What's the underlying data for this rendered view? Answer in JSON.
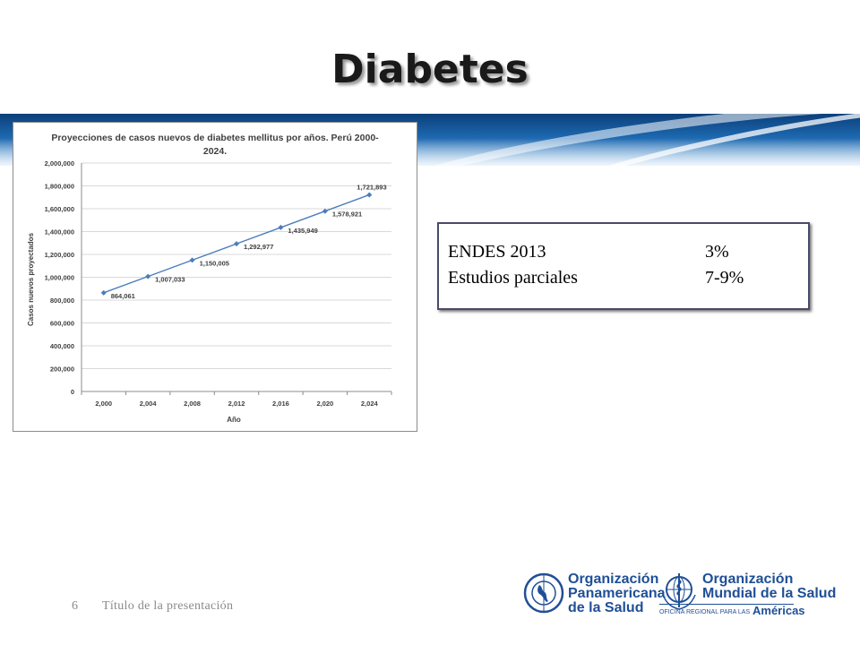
{
  "slide": {
    "title": "Diabetes",
    "footer_page": "6",
    "footer_title": "Título de la presentación"
  },
  "info_box": {
    "rows": [
      {
        "label": "ENDES 2013",
        "value": "3%"
      },
      {
        "label": "Estudios parciales",
        "value": "7-9%"
      }
    ]
  },
  "logos": {
    "paho": {
      "line1": "Organización",
      "line2": "Panamericana",
      "line3": "de la Salud",
      "icon": "paho-emblem-icon"
    },
    "who": {
      "line1": "Organización",
      "line2": "Mundial de la Salud",
      "sub_small": "OFICINA REGIONAL PARA LAS",
      "sub_big": "Américas",
      "icon": "who-emblem-icon"
    }
  },
  "colors": {
    "series": "#4a7ebb",
    "logo_blue": "#1f4f96"
  },
  "chart_data": {
    "type": "line",
    "title": "Proyecciones de casos nuevos de diabetes mellitus por años. Perú 2000-2024.",
    "title_lines": [
      "Proyecciones de casos nuevos de diabetes mellitus por años. Perú 2000-",
      "2024."
    ],
    "xlabel": "Año",
    "ylabel": "Casos nuevos proyectados",
    "categories": [
      "2,000",
      "2,004",
      "2,008",
      "2,012",
      "2,016",
      "2,020",
      "2,024"
    ],
    "values": [
      864061,
      1007033,
      1150005,
      1292977,
      1435949,
      1578921,
      1721893
    ],
    "value_labels": [
      "864,061",
      "1,007,033",
      "1,150,005",
      "1,292,977",
      "1,435,949",
      "1,578,921",
      "1,721,893"
    ],
    "ylim": [
      0,
      2000000
    ],
    "yticks": [
      0,
      200000,
      400000,
      600000,
      800000,
      1000000,
      1200000,
      1400000,
      1600000,
      1800000,
      2000000
    ],
    "ytick_labels": [
      "0",
      "200,000",
      "400,000",
      "600,000",
      "800,000",
      "1,000,000",
      "1,200,000",
      "1,400,000",
      "1,600,000",
      "1,800,000",
      "2,000,000"
    ],
    "grid": true,
    "legend": "none"
  }
}
